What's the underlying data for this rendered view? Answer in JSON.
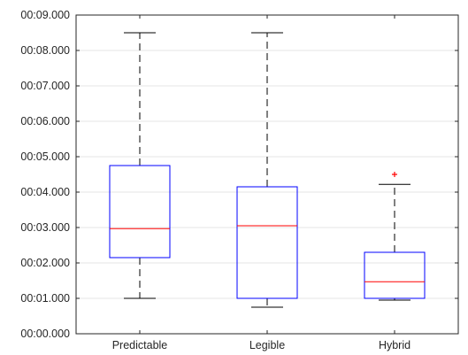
{
  "chart_data": {
    "type": "boxplot",
    "categories": [
      "Predictable",
      "Legible",
      "Hybrid"
    ],
    "y_tick_labels": [
      "00:00.000",
      "00:01.000",
      "00:02.000",
      "00:03.000",
      "00:04.000",
      "00:05.000",
      "00:06.000",
      "00:07.000",
      "00:08.000",
      "00:09.000"
    ],
    "ylim": [
      0,
      9
    ],
    "y_unit": "seconds",
    "grid": "horizontal",
    "boxes": [
      {
        "category": "Predictable",
        "whisker_low": 1.0,
        "q1": 2.15,
        "median": 2.97,
        "q3": 4.75,
        "whisker_high": 8.5,
        "outliers": []
      },
      {
        "category": "Legible",
        "whisker_low": 0.75,
        "q1": 1.0,
        "median": 3.05,
        "q3": 4.15,
        "whisker_high": 8.5,
        "outliers": []
      },
      {
        "category": "Hybrid",
        "whisker_low": 0.95,
        "q1": 1.0,
        "median": 1.47,
        "q3": 2.3,
        "whisker_high": 4.22,
        "outliers": [
          4.5
        ]
      }
    ],
    "colors": {
      "box": "#0000ff",
      "median": "#ff0000",
      "whisker": "#000000",
      "outlier": "#ff0000",
      "grid": "#e6e6e6",
      "axis": "#262626"
    }
  }
}
